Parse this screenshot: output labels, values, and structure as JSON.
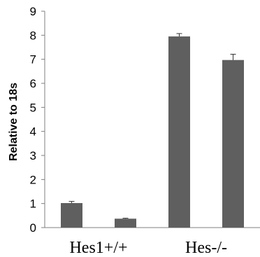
{
  "chart_data": {
    "type": "bar",
    "title": "",
    "xlabel": "",
    "ylabel": "Relative to 18s",
    "ylim": [
      0,
      9
    ],
    "yticks": [
      0,
      1,
      2,
      3,
      4,
      5,
      6,
      7,
      8,
      9
    ],
    "grid": false,
    "bar_color": "#5f5f5f",
    "groups": [
      {
        "label": "Hes1+/+",
        "bars": [
          {
            "value": 1.02,
            "error": 0.07
          },
          {
            "value": 0.37,
            "error": 0.02
          }
        ]
      },
      {
        "label": "Hes-/-",
        "bars": [
          {
            "value": 7.95,
            "error": 0.12
          },
          {
            "value": 6.97,
            "error": 0.24
          }
        ]
      }
    ]
  }
}
